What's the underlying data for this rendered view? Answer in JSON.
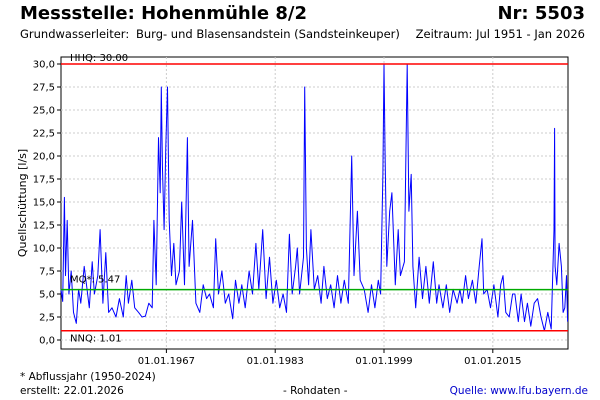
{
  "header": {
    "title": "Messstelle: Hohenmühle 8/2",
    "number": "Nr: 5503",
    "aquifer_label": "Grundwasserleiter:",
    "aquifer_value": "Burg- und Blasensandstein (Sandsteinkeuper)",
    "period": "Zeitraum: Jul 1951 - Jan 2026"
  },
  "footer": {
    "footnote": "* Abflussjahr (1950-2024)",
    "created": "erstellt:  22.01.2026",
    "rawdata": "- Rohdaten -",
    "source": "Quelle: www.lfu.bayern.de"
  },
  "colors": {
    "series": "#0000ff",
    "hhq": "#ff0000",
    "nnq": "#ff0000",
    "mq": "#00aa00",
    "grid": "#cccccc"
  },
  "chart_data": {
    "type": "line",
    "ylabel": "Quellschüttung [l/s]",
    "xlabel": "",
    "ylim": [
      0,
      30
    ],
    "xlim": [
      "1951-07-01",
      "2026-01-22"
    ],
    "grid": true,
    "yticks": [
      "0,0",
      "2,5",
      "5,0",
      "7,5",
      "10,0",
      "12,5",
      "15,0",
      "17,5",
      "20,0",
      "22,5",
      "25,0",
      "27,5",
      "30,0"
    ],
    "xticks": [
      {
        "date": "1967-01-01",
        "label": "01.01.1967"
      },
      {
        "date": "1983-01-01",
        "label": "01.01.1983"
      },
      {
        "date": "1999-01-01",
        "label": "01.01.1999"
      },
      {
        "date": "2015-01-01",
        "label": "01.01.2015"
      }
    ],
    "reference_lines": [
      {
        "name": "HHQ",
        "label": "HHQ: 30.00",
        "value": 30.0,
        "color": "#ff0000"
      },
      {
        "name": "MQ",
        "label": "MQ*: 5.47",
        "value": 5.47,
        "color": "#00aa00"
      },
      {
        "name": "NNQ",
        "label": "NNQ: 1.01",
        "value": 1.01,
        "color": "#ff0000"
      }
    ],
    "series": [
      {
        "name": "",
        "points": [
          [
            "1951-07",
            5.5
          ],
          [
            "1951-10",
            4.2
          ],
          [
            "1952-01",
            15.5
          ],
          [
            "1952-03",
            7.0
          ],
          [
            "1952-06",
            13.0
          ],
          [
            "1952-09",
            5.0
          ],
          [
            "1953-01",
            7.5
          ],
          [
            "1953-05",
            3.0
          ],
          [
            "1953-10",
            1.8
          ],
          [
            "1954-02",
            5.5
          ],
          [
            "1954-06",
            4.0
          ],
          [
            "1954-12",
            8.0
          ],
          [
            "1955-04",
            6.0
          ],
          [
            "1955-09",
            3.5
          ],
          [
            "1956-02",
            8.5
          ],
          [
            "1956-06",
            5.0
          ],
          [
            "1956-12",
            7.0
          ],
          [
            "1957-04",
            12.0
          ],
          [
            "1957-09",
            4.0
          ],
          [
            "1958-02",
            9.5
          ],
          [
            "1958-07",
            3.0
          ],
          [
            "1959-01",
            3.5
          ],
          [
            "1959-08",
            2.5
          ],
          [
            "1960-02",
            4.5
          ],
          [
            "1960-09",
            2.5
          ],
          [
            "1961-02",
            7.0
          ],
          [
            "1961-06",
            4.0
          ],
          [
            "1961-12",
            6.5
          ],
          [
            "1962-05",
            3.5
          ],
          [
            "1962-12",
            3.0
          ],
          [
            "1963-06",
            2.5
          ],
          [
            "1963-12",
            2.6
          ],
          [
            "1964-06",
            4.0
          ],
          [
            "1964-12",
            3.5
          ],
          [
            "1965-03",
            13.0
          ],
          [
            "1965-07",
            6.0
          ],
          [
            "1965-11",
            22.0
          ],
          [
            "1966-02",
            16.0
          ],
          [
            "1966-04",
            27.5
          ],
          [
            "1966-06",
            19.0
          ],
          [
            "1966-09",
            12.0
          ],
          [
            "1966-12",
            21.0
          ],
          [
            "1967-03",
            27.5
          ],
          [
            "1967-06",
            13.0
          ],
          [
            "1967-10",
            7.0
          ],
          [
            "1968-02",
            10.5
          ],
          [
            "1968-06",
            6.0
          ],
          [
            "1968-12",
            7.5
          ],
          [
            "1969-04",
            15.0
          ],
          [
            "1969-09",
            6.0
          ],
          [
            "1970-02",
            22.0
          ],
          [
            "1970-05",
            8.0
          ],
          [
            "1970-11",
            13.0
          ],
          [
            "1971-05",
            4.0
          ],
          [
            "1971-12",
            3.0
          ],
          [
            "1972-06",
            6.0
          ],
          [
            "1972-12",
            4.5
          ],
          [
            "1973-05",
            5.0
          ],
          [
            "1973-12",
            3.5
          ],
          [
            "1974-04",
            11.0
          ],
          [
            "1974-09",
            5.0
          ],
          [
            "1975-03",
            7.5
          ],
          [
            "1975-09",
            4.0
          ],
          [
            "1976-03",
            5.0
          ],
          [
            "1976-10",
            2.3
          ],
          [
            "1977-03",
            6.5
          ],
          [
            "1977-09",
            4.0
          ],
          [
            "1978-02",
            6.0
          ],
          [
            "1978-08",
            3.5
          ],
          [
            "1979-03",
            7.5
          ],
          [
            "1979-09",
            5.0
          ],
          [
            "1980-03",
            10.5
          ],
          [
            "1980-08",
            5.5
          ],
          [
            "1981-03",
            12.0
          ],
          [
            "1981-09",
            4.5
          ],
          [
            "1982-03",
            9.0
          ],
          [
            "1982-09",
            4.0
          ],
          [
            "1983-03",
            6.5
          ],
          [
            "1983-09",
            3.5
          ],
          [
            "1984-03",
            5.0
          ],
          [
            "1984-09",
            3.0
          ],
          [
            "1985-02",
            11.5
          ],
          [
            "1985-07",
            5.0
          ],
          [
            "1986-01",
            8.0
          ],
          [
            "1986-04",
            10.0
          ],
          [
            "1986-08",
            5.0
          ],
          [
            "1987-03",
            9.0
          ],
          [
            "1987-05",
            27.5
          ],
          [
            "1987-08",
            10.0
          ],
          [
            "1987-12",
            6.0
          ],
          [
            "1988-04",
            12.0
          ],
          [
            "1988-10",
            5.5
          ],
          [
            "1989-04",
            7.0
          ],
          [
            "1989-10",
            4.0
          ],
          [
            "1990-03",
            8.0
          ],
          [
            "1990-09",
            4.5
          ],
          [
            "1991-03",
            6.0
          ],
          [
            "1991-09",
            3.5
          ],
          [
            "1992-03",
            7.0
          ],
          [
            "1992-09",
            4.0
          ],
          [
            "1993-03",
            6.5
          ],
          [
            "1993-10",
            4.0
          ],
          [
            "1994-04",
            20.0
          ],
          [
            "1994-08",
            7.0
          ],
          [
            "1995-02",
            14.0
          ],
          [
            "1995-07",
            6.5
          ],
          [
            "1996-02",
            5.5
          ],
          [
            "1996-09",
            3.0
          ],
          [
            "1997-03",
            6.0
          ],
          [
            "1997-09",
            3.5
          ],
          [
            "1998-03",
            6.5
          ],
          [
            "1998-07",
            5.0
          ],
          [
            "1998-11",
            18.0
          ],
          [
            "1999-01",
            30.0
          ],
          [
            "1999-03",
            20.0
          ],
          [
            "1999-06",
            8.0
          ],
          [
            "1999-11",
            14.0
          ],
          [
            "2000-03",
            16.0
          ],
          [
            "2000-09",
            6.0
          ],
          [
            "2001-02",
            12.0
          ],
          [
            "2001-06",
            7.0
          ],
          [
            "2002-01",
            8.5
          ],
          [
            "2002-06",
            30.0
          ],
          [
            "2002-09",
            14.0
          ],
          [
            "2003-01",
            18.0
          ],
          [
            "2003-04",
            8.0
          ],
          [
            "2003-09",
            3.5
          ],
          [
            "2004-03",
            9.0
          ],
          [
            "2004-09",
            4.5
          ],
          [
            "2005-03",
            8.0
          ],
          [
            "2005-09",
            4.0
          ],
          [
            "2006-04",
            8.5
          ],
          [
            "2006-10",
            4.0
          ],
          [
            "2007-02",
            6.0
          ],
          [
            "2007-09",
            3.5
          ],
          [
            "2008-03",
            6.0
          ],
          [
            "2008-09",
            3.0
          ],
          [
            "2009-03",
            5.5
          ],
          [
            "2009-10",
            4.0
          ],
          [
            "2010-03",
            5.5
          ],
          [
            "2010-07",
            4.0
          ],
          [
            "2011-01",
            7.0
          ],
          [
            "2011-06",
            4.5
          ],
          [
            "2012-01",
            6.5
          ],
          [
            "2012-07",
            4.0
          ],
          [
            "2013-01",
            8.0
          ],
          [
            "2013-06",
            11.0
          ],
          [
            "2013-09",
            5.0
          ],
          [
            "2014-03",
            5.5
          ],
          [
            "2014-09",
            3.5
          ],
          [
            "2015-03",
            6.0
          ],
          [
            "2015-10",
            2.5
          ],
          [
            "2016-03",
            6.0
          ],
          [
            "2016-07",
            7.0
          ],
          [
            "2016-12",
            3.0
          ],
          [
            "2017-06",
            2.5
          ],
          [
            "2017-12",
            5.0
          ],
          [
            "2018-04",
            5.0
          ],
          [
            "2018-10",
            2.0
          ],
          [
            "2019-03",
            5.0
          ],
          [
            "2019-09",
            2.0
          ],
          [
            "2020-02",
            4.0
          ],
          [
            "2020-08",
            1.5
          ],
          [
            "2021-02",
            4.0
          ],
          [
            "2021-08",
            4.5
          ],
          [
            "2022-02",
            2.5
          ],
          [
            "2022-08",
            1.0
          ],
          [
            "2023-02",
            3.0
          ],
          [
            "2023-08",
            1.2
          ],
          [
            "2024-01",
            12.0
          ],
          [
            "2024-02",
            23.0
          ],
          [
            "2024-03",
            8.0
          ],
          [
            "2024-06",
            6.0
          ],
          [
            "2024-10",
            10.5
          ],
          [
            "2025-02",
            8.0
          ],
          [
            "2025-05",
            3.0
          ],
          [
            "2025-08",
            3.5
          ],
          [
            "2025-11",
            7.0
          ],
          [
            "2026-01",
            2.0
          ]
        ]
      }
    ]
  }
}
